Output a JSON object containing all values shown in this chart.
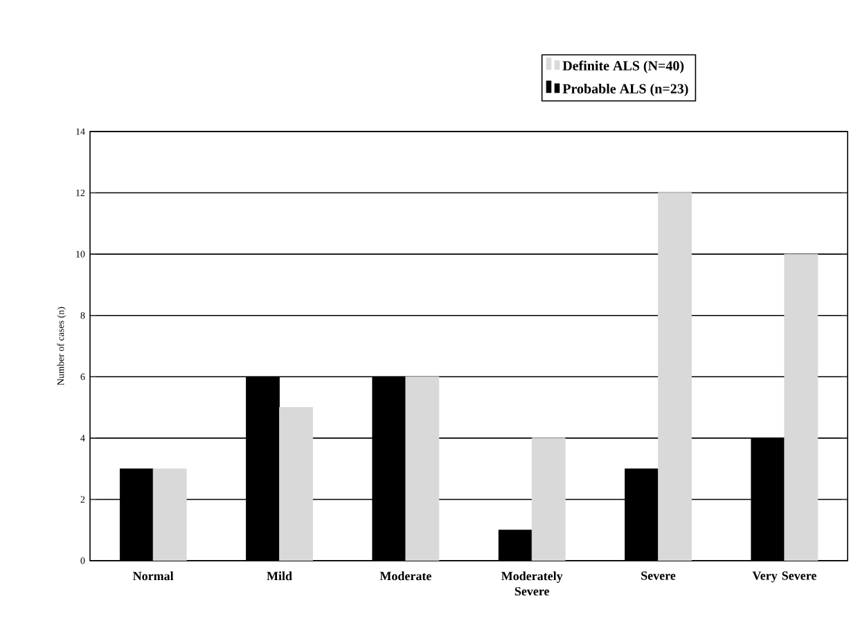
{
  "chart_data": {
    "type": "bar",
    "ylabel": "Number of cases (n)",
    "categories": [
      "Normal",
      "Mild",
      "Moderate",
      "Moderately Severe",
      "Severe",
      "Very Severe"
    ],
    "series": [
      {
        "name": "Probable ALS (n=23)",
        "color": "#000000",
        "values": [
          3,
          6,
          6,
          1,
          3,
          4
        ]
      },
      {
        "name": "Definite ALS (N=40)",
        "color": "#d9d9d9",
        "values": [
          3,
          5,
          6,
          4,
          12,
          10
        ]
      }
    ],
    "ylim": [
      0,
      14
    ],
    "yticks": [
      0,
      2,
      4,
      6,
      8,
      10,
      12,
      14
    ],
    "grid": "y",
    "legend": "top right"
  }
}
